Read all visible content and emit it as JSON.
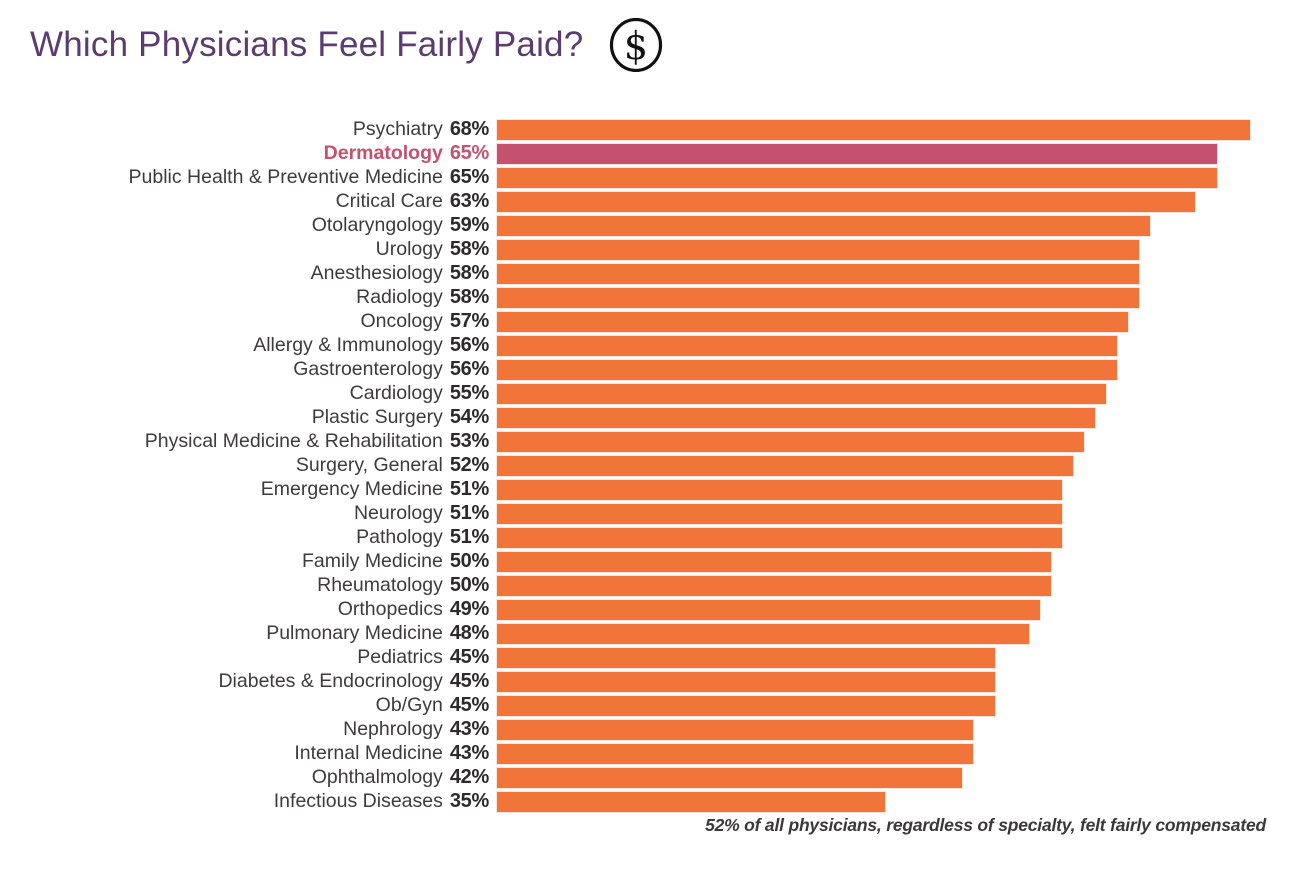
{
  "header": {
    "title": "Which Physicians Feel Fairly Paid?",
    "icon": "dollar-sign-circle-icon"
  },
  "colors": {
    "title": "#5c3b70",
    "bar": "#f1743b",
    "highlight": "#c4516e",
    "label": "#3e3b3c",
    "value": "#2d2a2b",
    "footnote": "#3b3839"
  },
  "chart_data": {
    "type": "bar",
    "orientation": "horizontal",
    "title": "Which Physicians Feel Fairly Paid?",
    "value_suffix": "%",
    "xlim": [
      0,
      70
    ],
    "grid": false,
    "legend": false,
    "categories": [
      "Psychiatry",
      "Dermatology",
      "Public Health & Preventive Medicine",
      "Critical Care",
      "Otolaryngology",
      "Urology",
      "Anesthesiology",
      "Radiology",
      "Oncology",
      "Allergy & Immunology",
      "Gastroenterology",
      "Cardiology",
      "Plastic Surgery",
      "Physical Medicine & Rehabilitation",
      "Surgery, General",
      "Emergency Medicine",
      "Neurology",
      "Pathology",
      "Family Medicine",
      "Rheumatology",
      "Orthopedics",
      "Pulmonary Medicine",
      "Pediatrics",
      "Diabetes & Endocrinology",
      "Ob/Gyn",
      "Nephrology",
      "Internal Medicine",
      "Ophthalmology",
      "Infectious Diseases"
    ],
    "values": [
      68,
      65,
      65,
      63,
      59,
      58,
      58,
      58,
      57,
      56,
      56,
      55,
      54,
      53,
      52,
      51,
      51,
      51,
      50,
      50,
      49,
      48,
      45,
      45,
      45,
      43,
      43,
      42,
      35
    ],
    "highlight": {
      "category": "Dermatology",
      "color": "#c4516e"
    },
    "bar_color": "#f1743b",
    "footnote": "52% of all physicians, regardless of specialty, felt fairly compensated"
  }
}
